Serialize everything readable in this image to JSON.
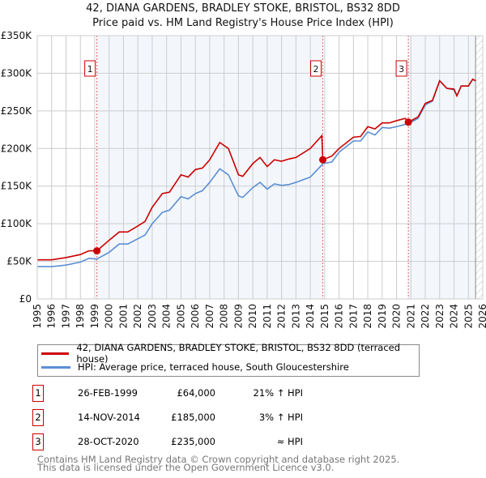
{
  "chart_data": {
    "type": "line",
    "title": "42, DIANA GARDENS, BRADLEY STOKE, BRISTOL, BS32 8DD",
    "subtitle": "Price paid vs. HM Land Registry's House Price Index (HPI)",
    "xlim": [
      1995,
      2026
    ],
    "ylim": [
      0,
      350000
    ],
    "x_ticks": [
      "1995",
      "1996",
      "1997",
      "1998",
      "1999",
      "2000",
      "2001",
      "2002",
      "2003",
      "2004",
      "2005",
      "2006",
      "2007",
      "2008",
      "2009",
      "2010",
      "2011",
      "2012",
      "2013",
      "2014",
      "2015",
      "2016",
      "2017",
      "2018",
      "2019",
      "2020",
      "2021",
      "2022",
      "2023",
      "2024",
      "2025",
      "2026"
    ],
    "y_ticks": [
      {
        "v": 0,
        "l": "£0"
      },
      {
        "v": 50000,
        "l": "£50K"
      },
      {
        "v": 100000,
        "l": "£100K"
      },
      {
        "v": 150000,
        "l": "£150K"
      },
      {
        "v": 200000,
        "l": "£200K"
      },
      {
        "v": 250000,
        "l": "£250K"
      },
      {
        "v": 300000,
        "l": "£300K"
      },
      {
        "v": 350000,
        "l": "£350K"
      }
    ],
    "grid": true,
    "series": [
      {
        "name": "42, DIANA GARDENS, BRADLEY STOKE, BRISTOL, BS32 8DD (terraced house)",
        "color": "#cc0000",
        "x": [
          1995,
          1996,
          1997,
          1998,
          1998.6,
          1999.15,
          2000,
          2000.7,
          2001.3,
          2002,
          2002.5,
          2003,
          2003.7,
          2004.2,
          2005,
          2005.5,
          2006,
          2006.5,
          2007,
          2007.7,
          2008.3,
          2009,
          2009.3,
          2010,
          2010.5,
          2011,
          2011.5,
          2012,
          2012.5,
          2013,
          2014,
          2014.8,
          2014.87,
          2015.5,
          2016,
          2017,
          2017.5,
          2018,
          2018.5,
          2019,
          2019.5,
          2020,
          2020.6,
          2020.82,
          2021.5,
          2022,
          2022.5,
          2023,
          2023.5,
          2024,
          2024.2,
          2024.5,
          2025,
          2025.3,
          2025.5
        ],
        "y": [
          52000,
          52000,
          55000,
          59000,
          64000,
          64000,
          78000,
          89000,
          89000,
          97000,
          103000,
          122000,
          140000,
          142000,
          165000,
          162000,
          172000,
          174000,
          185000,
          208000,
          200000,
          165000,
          163000,
          180000,
          188000,
          176000,
          185000,
          183000,
          186000,
          188000,
          200000,
          217000,
          185000,
          190000,
          200000,
          215000,
          216000,
          229000,
          226000,
          234000,
          234000,
          237000,
          240000,
          235000,
          242000,
          260000,
          264000,
          290000,
          280000,
          279000,
          270000,
          283000,
          283000,
          292000,
          290000
        ]
      },
      {
        "name": "HPI: Average price, terraced house, South Gloucestershire",
        "color": "#5b8fd4",
        "x": [
          1995,
          1996,
          1997,
          1998,
          1998.6,
          1999.15,
          2000,
          2000.7,
          2001.3,
          2002,
          2002.5,
          2003,
          2003.7,
          2004.2,
          2005,
          2005.5,
          2006,
          2006.5,
          2007,
          2007.7,
          2008.3,
          2009,
          2009.3,
          2010,
          2010.5,
          2011,
          2011.5,
          2012,
          2012.5,
          2013,
          2014,
          2014.8,
          2014.87,
          2015.5,
          2016,
          2017,
          2017.5,
          2018,
          2018.5,
          2019,
          2019.5,
          2020,
          2020.6,
          2020.82,
          2021.5,
          2022,
          2022.5,
          2023,
          2023.5,
          2024,
          2024.2,
          2024.5,
          2025,
          2025.3,
          2025.5
        ],
        "y": [
          43000,
          43000,
          45000,
          49000,
          54000,
          53000,
          62000,
          73000,
          73000,
          80000,
          85000,
          100000,
          115000,
          118000,
          136000,
          133000,
          140000,
          144000,
          155000,
          173000,
          165000,
          137000,
          135000,
          148000,
          155000,
          146000,
          153000,
          151000,
          152000,
          155000,
          162000,
          178000,
          180000,
          182000,
          195000,
          210000,
          210000,
          222000,
          218000,
          228000,
          227000,
          229000,
          232000,
          233000,
          240000,
          258000,
          263000,
          290000,
          280000,
          278000,
          270000,
          283000,
          283000,
          292000,
          290000
        ]
      }
    ],
    "sales": [
      {
        "label": "1",
        "x": 1999.15,
        "y": 64000,
        "date": "26-FEB-1999",
        "price": "£64,000",
        "hpi": "21% ↑ HPI"
      },
      {
        "label": "2",
        "x": 2014.87,
        "y": 185000,
        "date": "14-NOV-2014",
        "price": "£185,000",
        "hpi": "3% ↑ HPI"
      },
      {
        "label": "3",
        "x": 2020.82,
        "y": 235000,
        "date": "28-OCT-2020",
        "price": "£235,000",
        "hpi": "≈ HPI"
      }
    ],
    "forecast_from": 2025.5,
    "legend": "bottom"
  },
  "footer": {
    "line1": "Contains HM Land Registry data © Crown copyright and database right 2025.",
    "line2": "This data is licensed under the Open Government Licence v3.0."
  }
}
